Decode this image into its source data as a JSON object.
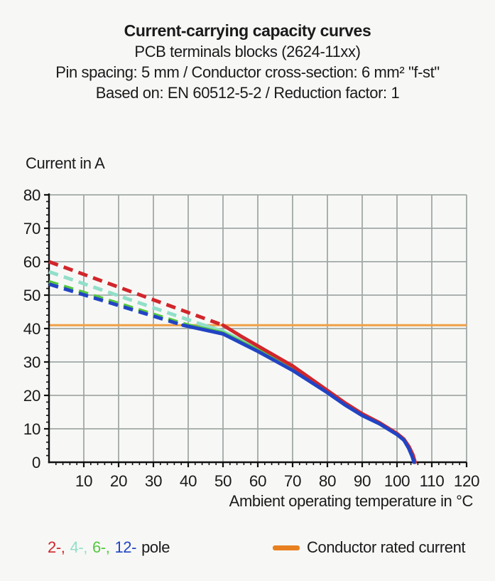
{
  "page": {
    "background": "#f7f8f6",
    "text_color": "#1a1a1a"
  },
  "header": {
    "title": "Current-carrying capacity curves",
    "subtitle": "PCB terminals blocks (2624-11xx)",
    "line3": "Pin spacing: 5 mm / Conductor cross-section: 6 mm² \"f-st\"",
    "line4": "Based on: EN 60512-5-2 / Reduction factor: 1"
  },
  "chart_data": {
    "type": "line",
    "title": "Current-carrying capacity curves",
    "ylabel": "Current in A",
    "xlabel": "Ambient operating temperature in °C",
    "xlim": [
      0,
      120
    ],
    "ylim": [
      0,
      80
    ],
    "x_ticks": [
      10,
      20,
      30,
      40,
      50,
      60,
      70,
      80,
      90,
      100,
      110,
      120
    ],
    "y_ticks": [
      0,
      10,
      20,
      30,
      40,
      50,
      60,
      70,
      80
    ],
    "minor_tick_step": 2,
    "grid": true,
    "grid_color": "#a0a8a6",
    "axis_color": "#111111",
    "rated_current": {
      "value": 41,
      "color": "#f0a24a",
      "label": "Conductor rated current"
    },
    "series": [
      {
        "name": "2-pole",
        "color": "#d1262b",
        "style_note": "dashed above rated current, solid below",
        "dashed": [
          [
            0,
            60
          ],
          [
            50,
            41
          ]
        ],
        "solid": [
          [
            50,
            41
          ],
          [
            55,
            37.8
          ],
          [
            60,
            34.8
          ],
          [
            70,
            28.8
          ],
          [
            80,
            21.5
          ],
          [
            85,
            17.8
          ],
          [
            90,
            14.5
          ],
          [
            95,
            11.8
          ],
          [
            100,
            8.6
          ],
          [
            102,
            6.9
          ],
          [
            103.5,
            4.6
          ],
          [
            104.6,
            2.2
          ],
          [
            105.2,
            0
          ]
        ]
      },
      {
        "name": "4-pole",
        "color": "#92dfc9",
        "style_note": "dashed above rated current, solid below",
        "dashed": [
          [
            0,
            57
          ],
          [
            44.5,
            41
          ]
        ],
        "solid": [
          [
            44.5,
            41
          ],
          [
            50,
            39.2
          ],
          [
            60,
            34
          ],
          [
            70,
            28.2
          ],
          [
            80,
            21.2
          ],
          [
            85,
            17.6
          ],
          [
            90,
            14.3
          ],
          [
            95,
            11.7
          ],
          [
            100,
            8.5
          ],
          [
            102,
            6.8
          ],
          [
            103.5,
            4.5
          ],
          [
            104.5,
            2.1
          ],
          [
            105.1,
            0
          ]
        ]
      },
      {
        "name": "6-pole",
        "color": "#55c83e",
        "style_note": "dashed above rated current, solid below",
        "dashed": [
          [
            0,
            54
          ],
          [
            40,
            41
          ]
        ],
        "solid": [
          [
            40,
            41
          ],
          [
            50,
            38.7
          ],
          [
            60,
            33.6
          ],
          [
            70,
            27.9
          ],
          [
            80,
            21
          ],
          [
            85,
            17.4
          ],
          [
            90,
            14.2
          ],
          [
            95,
            11.6
          ],
          [
            100,
            8.4
          ],
          [
            102,
            6.7
          ],
          [
            103.4,
            4.4
          ],
          [
            104.4,
            2
          ],
          [
            105,
            0
          ]
        ]
      },
      {
        "name": "12-pole",
        "color": "#2244c4",
        "style_note": "dashed above rated current, solid below",
        "dashed": [
          [
            0,
            53.3
          ],
          [
            38.5,
            41
          ]
        ],
        "solid": [
          [
            38.5,
            41
          ],
          [
            50,
            38.4
          ],
          [
            60,
            33.2
          ],
          [
            70,
            27.5
          ],
          [
            80,
            20.8
          ],
          [
            85,
            17.2
          ],
          [
            90,
            14
          ],
          [
            95,
            11.5
          ],
          [
            100,
            8.3
          ],
          [
            102,
            6.6
          ],
          [
            103.3,
            4.3
          ],
          [
            104.3,
            1.9
          ],
          [
            104.9,
            0
          ]
        ]
      }
    ],
    "legend_position": "bottom"
  },
  "legend": {
    "pole_entries": [
      {
        "label": "2-,",
        "color": "#d1262b"
      },
      {
        "label": "4-,",
        "color": "#92dfc9"
      },
      {
        "label": "6-,",
        "color": "#55c83e"
      },
      {
        "label": "12-",
        "color": "#2244c4"
      }
    ],
    "pole_suffix": "pole",
    "rated": {
      "label": "Conductor rated current",
      "swatch_color": "#e8801f"
    }
  }
}
